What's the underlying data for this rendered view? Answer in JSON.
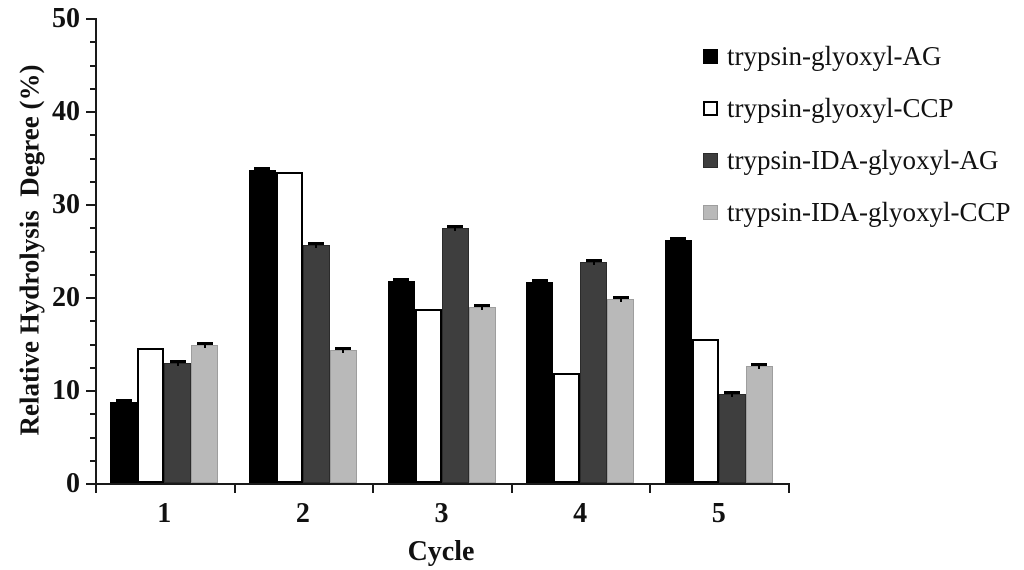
{
  "chart_data": {
    "type": "bar",
    "title": "",
    "xlabel": "Cycle",
    "ylabel": "Relative Hydrolysis  Degree (%)",
    "categories": [
      "1",
      "2",
      "3",
      "4",
      "5"
    ],
    "ylim": [
      0,
      50
    ],
    "y_major_ticks": [
      0,
      10,
      20,
      30,
      40,
      50
    ],
    "y_tick_labels": [
      "0",
      "10",
      "20",
      "30",
      "40",
      "50"
    ],
    "y_minor_step": 2.5,
    "grid": false,
    "legend_position": "top-right",
    "axis_color": "#1a1a1a",
    "series": [
      {
        "name": "trypsin-glyoxyl-AG",
        "color": "#000000",
        "border": "#000000",
        "error_cap": true,
        "values": [
          8.7,
          33.7,
          21.7,
          21.6,
          26.1
        ]
      },
      {
        "name": "trypsin-glyoxyl-CCP",
        "color": "#ffffff",
        "border": "#000000",
        "error_cap": false,
        "values": [
          14.5,
          33.4,
          18.7,
          11.8,
          15.5
        ]
      },
      {
        "name": "trypsin-IDA-glyoxyl-AG",
        "color": "#3e3e3e",
        "border": "#2b2b2b",
        "error_cap": true,
        "values": [
          12.9,
          25.6,
          27.4,
          23.8,
          9.6
        ]
      },
      {
        "name": "trypsin-IDA-glyoxyl-CCP",
        "color": "#b9b9b9",
        "border": "#9e9e9e",
        "error_cap": true,
        "values": [
          14.8,
          14.3,
          18.9,
          19.8,
          12.6
        ]
      }
    ]
  }
}
